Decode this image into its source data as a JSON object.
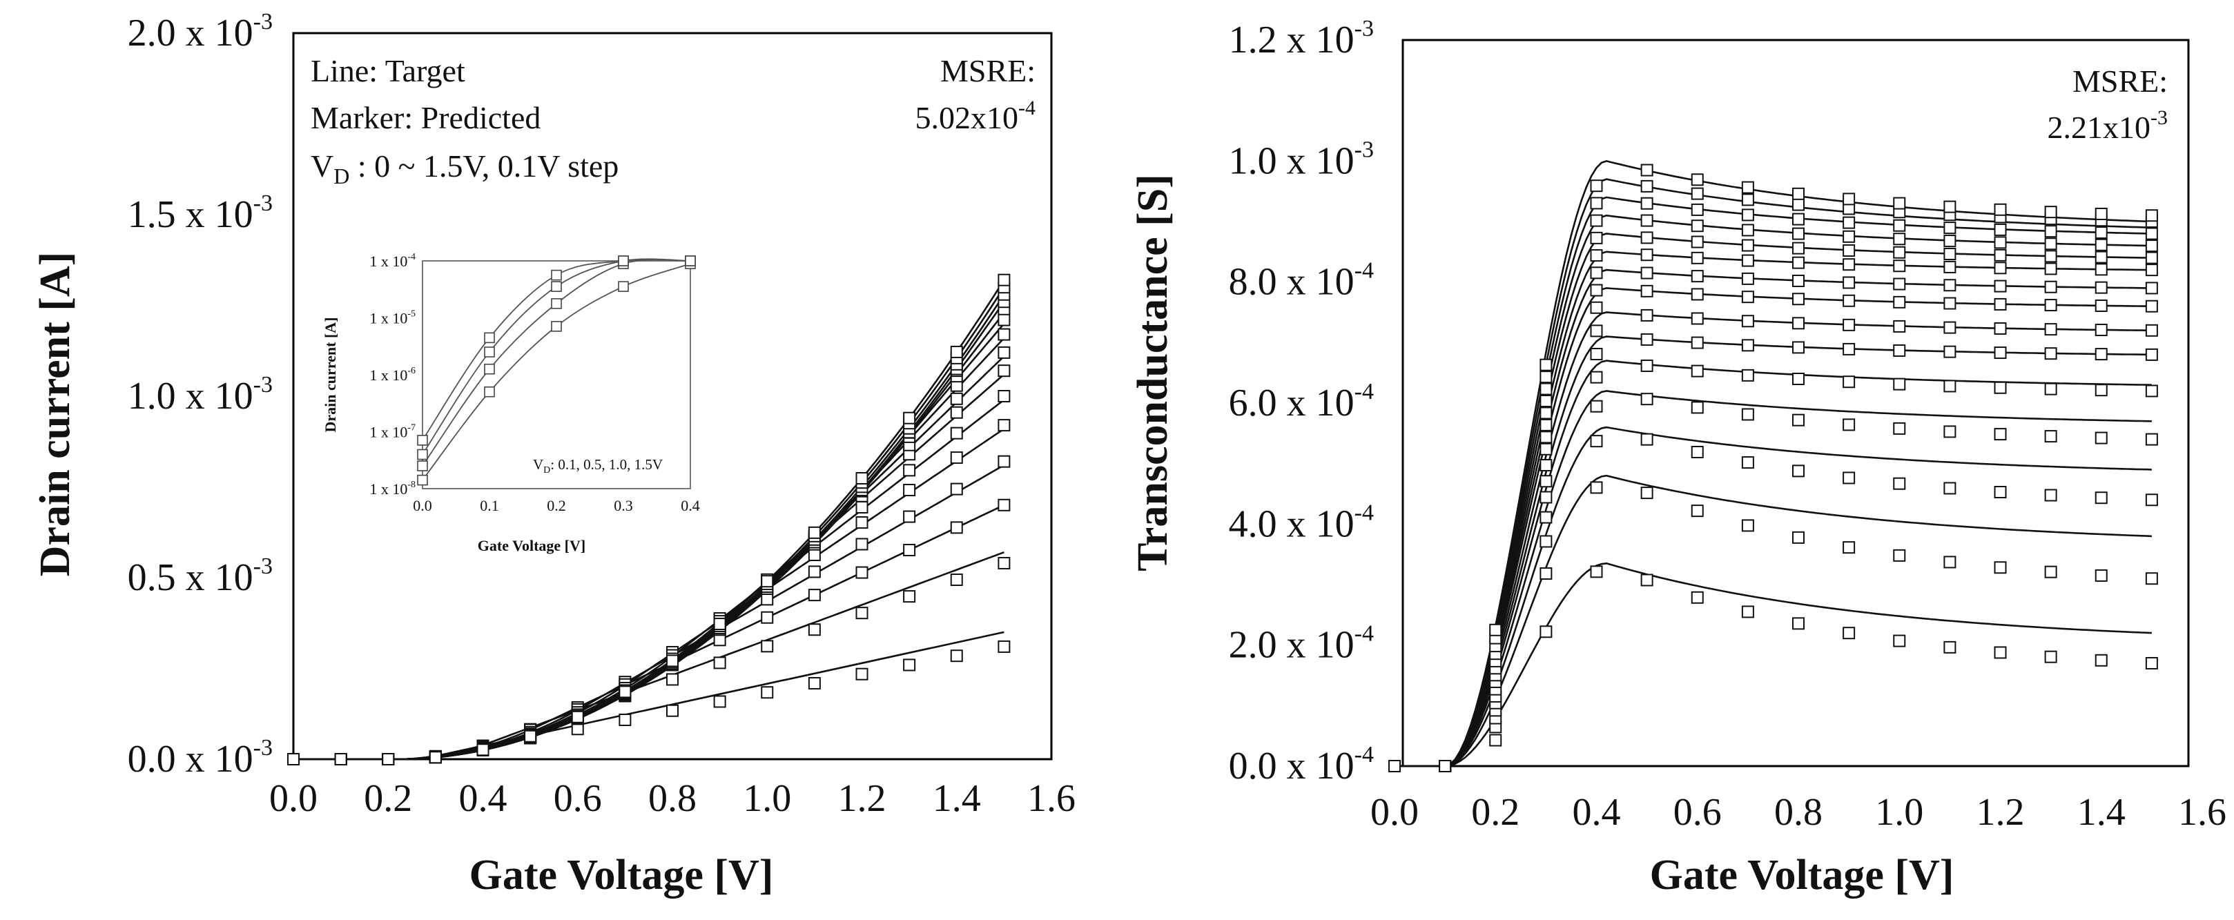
{
  "chart_data": [
    {
      "type": "line",
      "name": "drain-current",
      "xlabel": "Gate Voltage [V]",
      "ylabel": "Drain current [A]",
      "xlim": [
        0,
        1.6
      ],
      "ylim": [
        0,
        0.002
      ],
      "x_ticks": [
        "0.0",
        "0.2",
        "0.4",
        "0.6",
        "0.8",
        "1.0",
        "1.2",
        "1.4",
        "1.6"
      ],
      "y_ticks": [
        {
          "mantissa": "0.0",
          "exp": "-3"
        },
        {
          "mantissa": "0.5",
          "exp": "-3"
        },
        {
          "mantissa": "1.0",
          "exp": "-3"
        },
        {
          "mantissa": "1.5",
          "exp": "-3"
        },
        {
          "mantissa": "2.0",
          "exp": "-3"
        }
      ],
      "annotations": {
        "line1": "Line: Target",
        "line2": "Marker: Predicted",
        "vd_main": "V",
        "vd_sub": "D",
        "vd_rest": " : 0 ~ 1.5V, 0.1V step",
        "msre_label": "MSRE:",
        "msre_mantissa": "5.02x10",
        "msre_exp": "-4"
      },
      "legend": {
        "line": "Target",
        "marker": "Predicted"
      },
      "vd_values": [
        0.1,
        0.2,
        0.3,
        0.4,
        0.5,
        0.6,
        0.7,
        0.8,
        0.9,
        1.0,
        1.1,
        1.2,
        1.3,
        1.4,
        1.5
      ],
      "x_points": [
        0.0,
        0.1,
        0.2,
        0.3,
        0.4,
        0.5,
        0.6,
        0.7,
        0.8,
        0.9,
        1.0,
        1.1,
        1.2,
        1.3,
        1.4,
        1.5
      ],
      "series_end_target": [
        0.00035,
        0.00057,
        0.0007,
        0.00081,
        0.00091,
        0.00099,
        0.00106,
        0.00111,
        0.00116,
        0.0012,
        0.00123,
        0.00126,
        0.00128,
        0.0013,
        0.00132
      ],
      "series_end_predicted": [
        0.00031,
        0.00054,
        0.0007,
        0.00082,
        0.00092,
        0.001,
        0.00107,
        0.00112,
        0.00117,
        0.00121,
        0.00124,
        0.00126,
        0.00128,
        0.0013,
        0.00132
      ],
      "inset": {
        "type": "line",
        "scale": "log",
        "xlabel": "Gate Voltage [V]",
        "ylabel": "Drain current [A]",
        "xlim": [
          0,
          0.4
        ],
        "ylim": [
          1e-08,
          0.0001
        ],
        "x_ticks": [
          "0.0",
          "0.1",
          "0.2",
          "0.3",
          "0.4"
        ],
        "y_ticks": [
          {
            "mantissa": "1 x 10",
            "exp": "-8"
          },
          {
            "mantissa": "1 x 10",
            "exp": "-7"
          },
          {
            "mantissa": "1 x 10",
            "exp": "-6"
          },
          {
            "mantissa": "1 x 10",
            "exp": "-5"
          },
          {
            "mantissa": "1 x 10",
            "exp": "-4"
          }
        ],
        "annotation_main": "V",
        "annotation_sub": "D",
        "annotation_rest": ": 0.1, 0.5, 1.0, 1.5V",
        "vd_values": [
          0.1,
          0.5,
          1.0,
          1.5
        ],
        "x_points": [
          0.0,
          0.1,
          0.2,
          0.3,
          0.4
        ],
        "series_log10": [
          [
            -7.85,
            -6.3,
            -5.15,
            -4.45,
            -4.05
          ],
          [
            -7.6,
            -5.9,
            -4.75,
            -4.05,
            -3.8
          ],
          [
            -7.4,
            -5.6,
            -4.45,
            -3.95,
            -3.75
          ],
          [
            -7.15,
            -5.35,
            -4.25,
            -3.9,
            -3.7
          ]
        ]
      }
    },
    {
      "type": "line",
      "name": "transconductance",
      "xlabel": "Gate Voltage [V]",
      "ylabel": "Transconductance [S]",
      "xlim": [
        0,
        1.6
      ],
      "ylim": [
        0,
        0.0012
      ],
      "x_ticks": [
        "0.0",
        "0.2",
        "0.4",
        "0.6",
        "0.8",
        "1.0",
        "1.2",
        "1.4",
        "1.6"
      ],
      "y_ticks": [
        {
          "mantissa": "0.0 x 10",
          "exp": "-4"
        },
        {
          "mantissa": "2.0 x 10",
          "exp": "-4"
        },
        {
          "mantissa": "4.0 x 10",
          "exp": "-4"
        },
        {
          "mantissa": "6.0 x 10",
          "exp": "-4"
        },
        {
          "mantissa": "8.0 x 10",
          "exp": "-4"
        },
        {
          "mantissa": "1.0 x 10",
          "exp": "-3"
        },
        {
          "mantissa": "1.2 x 10",
          "exp": "-3"
        }
      ],
      "annotations": {
        "msre_label": "MSRE:",
        "msre_mantissa": "2.21x10",
        "msre_exp": "-3"
      },
      "vd_values": [
        0.1,
        0.2,
        0.3,
        0.4,
        0.5,
        0.6,
        0.7,
        0.8,
        0.9,
        1.0,
        1.1,
        1.2,
        1.3,
        1.4,
        1.5
      ],
      "x_points": [
        0.0,
        0.1,
        0.2,
        0.3,
        0.4,
        0.5,
        0.6,
        0.7,
        0.8,
        0.9,
        1.0,
        1.1,
        1.2,
        1.3,
        1.4,
        1.5
      ],
      "series_peak_target": [
        0.000335,
        0.00048,
        0.00056,
        0.00062,
        0.00067,
        0.00071,
        0.00075,
        0.00079,
        0.00082,
        0.00085,
        0.00088,
        0.00091,
        0.00094,
        0.00097,
        0.001
      ],
      "series_end_target": [
        0.00022,
        0.00038,
        0.00049,
        0.00057,
        0.00063,
        0.00068,
        0.00072,
        0.00076,
        0.00079,
        0.00082,
        0.00084,
        0.00086,
        0.00088,
        0.00089,
        0.0009
      ],
      "series_end_predicted": [
        0.00017,
        0.00031,
        0.00044,
        0.00054,
        0.00062,
        0.00068,
        0.00072,
        0.00076,
        0.00079,
        0.00082,
        0.00084,
        0.00086,
        0.00088,
        0.0009,
        0.00091
      ]
    }
  ]
}
